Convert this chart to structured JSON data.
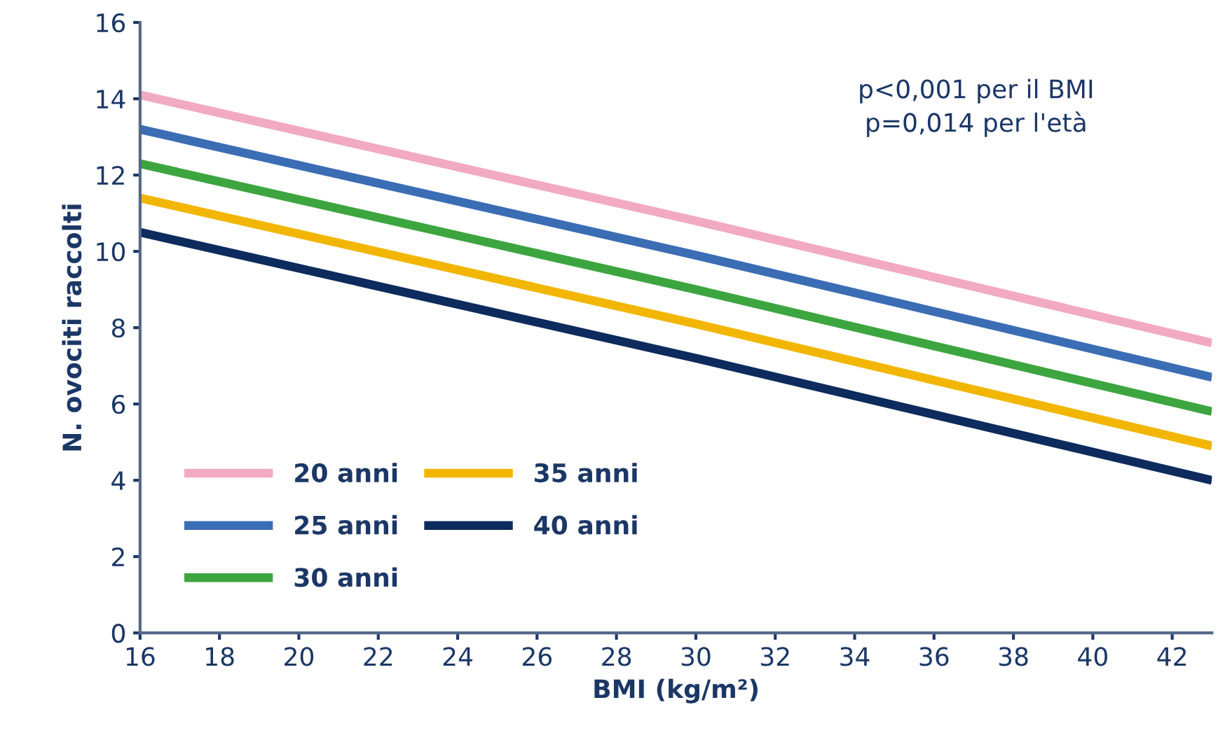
{
  "chart_data": {
    "type": "line",
    "xlabel": "BMI (kg/m²)",
    "ylabel": "N. ovociti raccolti",
    "x": [
      16,
      30,
      43
    ],
    "series": [
      {
        "name": "20 anni",
        "color": "#f2a9c2",
        "values": [
          14.1,
          10.8,
          7.6
        ]
      },
      {
        "name": "25 anni",
        "color": "#3b6db5",
        "values": [
          13.2,
          9.9,
          6.7
        ]
      },
      {
        "name": "30 anni",
        "color": "#3da53f",
        "values": [
          12.3,
          9.0,
          5.8
        ]
      },
      {
        "name": "35 anni",
        "color": "#f2b600",
        "values": [
          11.4,
          8.1,
          4.9
        ]
      },
      {
        "name": "40 anni",
        "color": "#0d2b5c",
        "values": [
          10.5,
          7.2,
          4.0
        ]
      }
    ],
    "xlim": [
      16,
      43
    ],
    "xticks": [
      16,
      18,
      20,
      22,
      24,
      26,
      28,
      30,
      32,
      34,
      36,
      38,
      40,
      42
    ],
    "ylim": [
      0,
      16
    ],
    "yticks": [
      0,
      2,
      4,
      6,
      8,
      10,
      12,
      14,
      16
    ],
    "annotations": [
      "p<0,001 per il BMI\np=0,014 per l'età"
    ],
    "legend": "bottom left",
    "grid": false,
    "marker": "none",
    "line_style": "solid"
  }
}
